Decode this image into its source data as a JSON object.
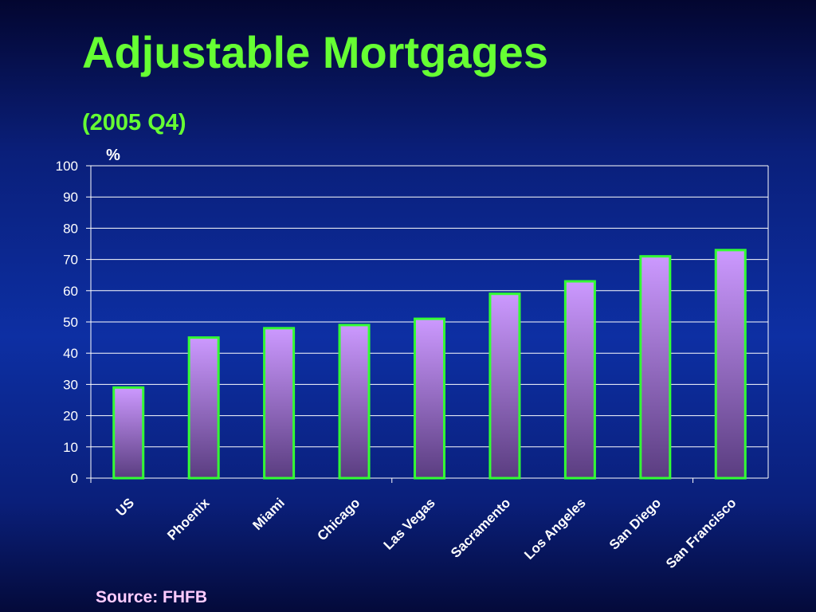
{
  "slide": {
    "title": "Adjustable Mortgages",
    "subtitle": "(2005 Q4)",
    "source": "Source: FHFB"
  },
  "chart_data": {
    "type": "bar",
    "title": "Adjustable Mortgages",
    "subtitle": "(2005 Q4)",
    "ylabel": "%",
    "xlabel": "",
    "categories": [
      "US",
      "Phoenix",
      "Miami",
      "Chicago",
      "Las Vegas",
      "Sacramento",
      "Los Angeles",
      "San Diego",
      "San Francisco"
    ],
    "values": [
      29,
      45,
      48,
      49,
      51,
      59,
      63,
      71,
      73
    ],
    "ylim": [
      0,
      100
    ],
    "yticks": [
      0,
      10,
      20,
      30,
      40,
      50,
      60,
      70,
      80,
      90,
      100
    ],
    "grid": true,
    "legend": "none",
    "colors": {
      "bar_top": "#cc99ff",
      "bar_bottom": "#5a3d80",
      "bar_outline": "#33ff33",
      "gridline": "#ffffff",
      "axis": "#ffffff"
    }
  }
}
